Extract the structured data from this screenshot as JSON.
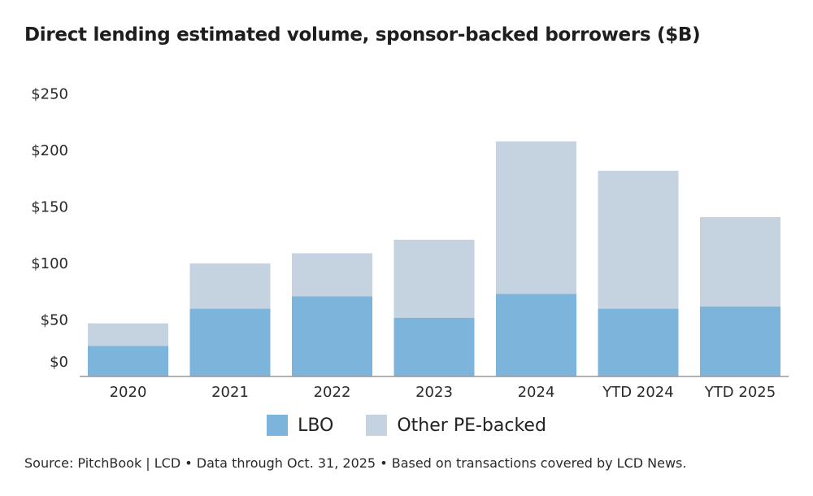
{
  "chart_data": {
    "type": "bar",
    "stacked": true,
    "title": "Direct lending estimated volume, sponsor-backed borrowers ($B)",
    "categories": [
      "2020",
      "2021",
      "2022",
      "2023",
      "2024",
      "YTD 2024",
      "YTD 2025"
    ],
    "series": [
      {
        "name": "LBO",
        "color": "#7db4db",
        "values": [
          27,
          60,
          71,
          52,
          73,
          60,
          62
        ]
      },
      {
        "name": "Other PE-backed",
        "color": "#c5d2df",
        "values": [
          20,
          40,
          38,
          69,
          135,
          122,
          79
        ]
      }
    ],
    "ylim": [
      0,
      250
    ],
    "yticks": [
      0,
      50,
      100,
      150,
      200,
      250
    ],
    "ytick_labels": [
      "$0",
      "$50",
      "$100",
      "$150",
      "$200",
      "$250"
    ],
    "xlabel": "",
    "ylabel": "",
    "grid": false,
    "legend_position": "bottom",
    "source": "Source: PitchBook | LCD • Data through Oct. 31, 2025 • Based on transactions covered by LCD News."
  }
}
